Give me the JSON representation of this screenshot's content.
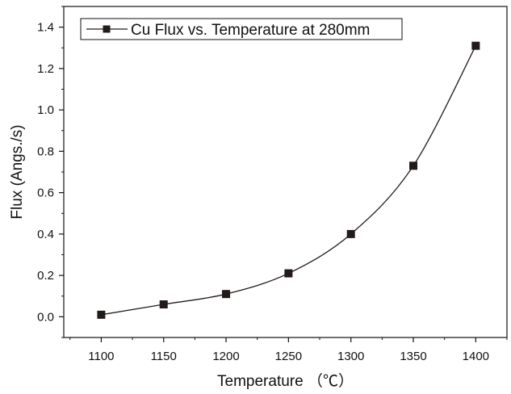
{
  "chart_data": {
    "type": "line",
    "title": "",
    "xlabel": "Temperature （℃）",
    "ylabel": "Flux (Angs./s)",
    "xlim": [
      1070,
      1425
    ],
    "ylim": [
      -0.1,
      1.5
    ],
    "x": [
      1100,
      1150,
      1200,
      1250,
      1300,
      1350,
      1400
    ],
    "xticks": [
      "1100",
      "1150",
      "1200",
      "1250",
      "1300",
      "1350",
      "1400"
    ],
    "yticks": [
      "0.0",
      "0.2",
      "0.4",
      "0.6",
      "0.8",
      "1.0",
      "1.2",
      "1.4"
    ],
    "series": [
      {
        "name": "Cu Flux vs. Temperature at 280mm",
        "values": [
          0.01,
          0.06,
          0.11,
          0.21,
          0.4,
          0.73,
          1.31
        ],
        "marker": "square",
        "color": "#231a1a"
      }
    ],
    "grid": false,
    "legend_position": "top-left"
  }
}
